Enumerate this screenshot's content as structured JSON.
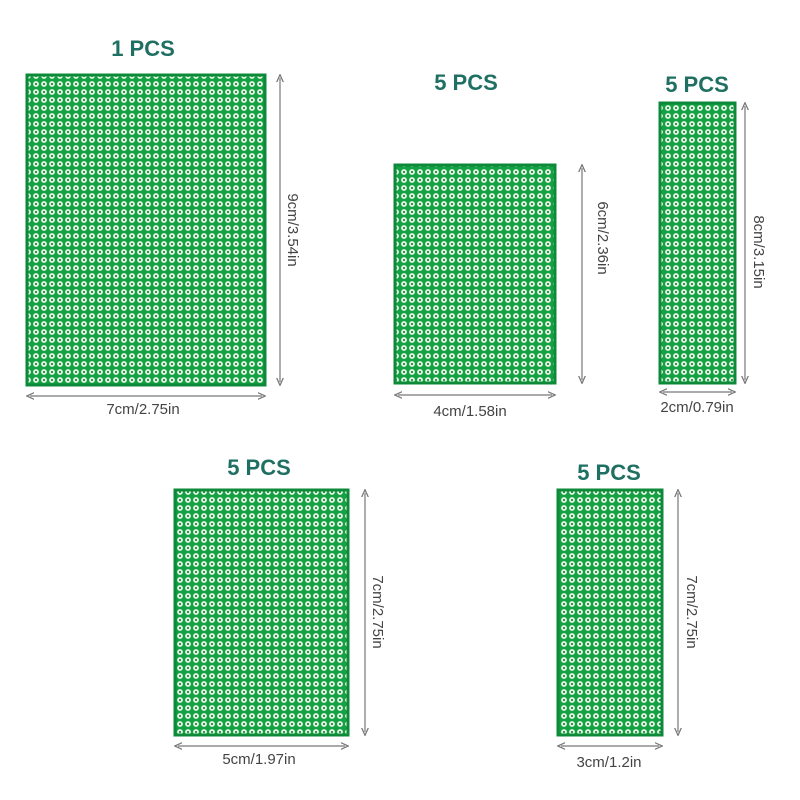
{
  "boards": [
    {
      "quantity": "1 PCS",
      "width": "7cm/2.75in",
      "height": "9cm/3.54in"
    },
    {
      "quantity": "5 PCS",
      "width": "4cm/1.58in",
      "height": "6cm/2.36in"
    },
    {
      "quantity": "5 PCS",
      "width": "2cm/0.79in",
      "height": "8cm/3.15in"
    },
    {
      "quantity": "5 PCS",
      "width": "5cm/1.97in",
      "height": "7cm/2.75in"
    },
    {
      "quantity": "5 PCS",
      "width": "3cm/1.2in",
      "height": "7cm/2.75in"
    }
  ]
}
